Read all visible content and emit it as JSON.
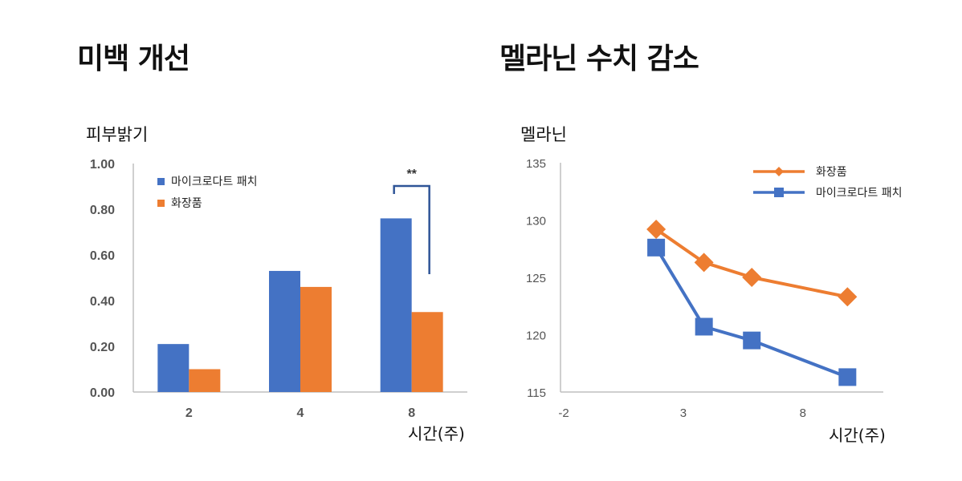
{
  "left_chart": {
    "title": "미백 개선",
    "ylabel": "피부밝기",
    "xlabel": "시간(주)",
    "significance": "**"
  },
  "right_chart": {
    "title": "멜라닌 수치 감소",
    "ylabel": "멜라닌",
    "xlabel": "시간(주)"
  },
  "colors": {
    "blue": "#4472C4",
    "orange": "#ED7D31",
    "axis": "#bfbfbf"
  },
  "chart_data": [
    {
      "type": "bar",
      "title": "미백 개선",
      "ylabel": "피부밝기",
      "xlabel": "시간(주)",
      "categories": [
        "2",
        "4",
        "8"
      ],
      "series": [
        {
          "name": "마이크로다트 패치",
          "values": [
            0.21,
            0.53,
            0.76
          ],
          "color": "#4472C4"
        },
        {
          "name": "화장품",
          "values": [
            0.1,
            0.46,
            0.35
          ],
          "color": "#ED7D31"
        }
      ],
      "ylim": [
        0,
        1.0
      ],
      "yticks": [
        "0.00",
        "0.20",
        "0.40",
        "0.60",
        "0.80",
        "1.00"
      ],
      "legend": "top-left",
      "grid": false,
      "annotations": [
        "**"
      ]
    },
    {
      "type": "line",
      "title": "멜라닌 수치 감소",
      "ylabel": "멜라닌",
      "xlabel": "시간(주)",
      "x": [
        2,
        4,
        6,
        10
      ],
      "xlim": [
        -2,
        11.5
      ],
      "xticks": [
        "-2",
        "3",
        "8"
      ],
      "xtick_values": [
        -2,
        3,
        8
      ],
      "series": [
        {
          "name": "화장품",
          "values": [
            129.2,
            126.3,
            125.0,
            123.3
          ],
          "color": "#ED7D31",
          "marker": "diamond"
        },
        {
          "name": "마이크로다트 패치",
          "values": [
            127.6,
            120.7,
            119.5,
            116.3
          ],
          "color": "#4472C4",
          "marker": "square"
        }
      ],
      "ylim": [
        115,
        135
      ],
      "yticks": [
        "115",
        "120",
        "125",
        "130",
        "135"
      ],
      "legend": "top-right",
      "grid": false
    }
  ]
}
